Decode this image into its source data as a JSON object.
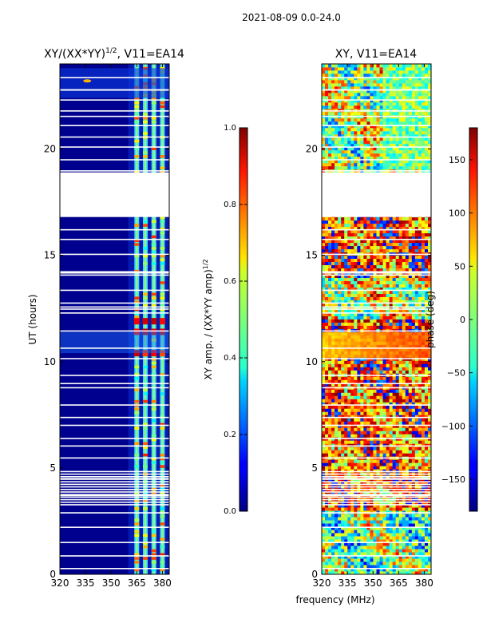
{
  "figure": {
    "suptitle": "2021-08-09 0.0-24.0",
    "shared_xlabel": "frequency (MHz)"
  },
  "chart_data": [
    {
      "type": "heatmap",
      "title": "XY/(XX*YY)",
      "title_exponent": "1/2",
      "title_suffix": ", V11=EA14",
      "ylabel": "UT (hours)",
      "xlabel": "frequency (MHz)",
      "xlim": [
        320,
        384
      ],
      "ylim": [
        0,
        24
      ],
      "xticks": [
        320,
        335,
        350,
        365,
        380
      ],
      "yticks": [
        0,
        5,
        10,
        15,
        20
      ],
      "band_columns_mhz": [
        365,
        370,
        375,
        380
      ],
      "missing_data_ut": [
        16.8,
        18.9
      ],
      "colorbar": {
        "label": "XY amp. / (XX*YY amp)",
        "label_exponent": "1/2",
        "range": [
          0.0,
          1.0
        ],
        "ticks": [
          "0.0",
          "0.2",
          "0.4",
          "0.6",
          "0.8",
          "1.0"
        ],
        "colormap": "jet"
      }
    },
    {
      "type": "heatmap",
      "title": "XY, V11=EA14",
      "ylabel": "",
      "xlabel": "frequency (MHz)",
      "xlim": [
        320,
        384
      ],
      "ylim": [
        0,
        24
      ],
      "xticks": [
        320,
        335,
        350,
        365,
        380
      ],
      "yticks": [
        0,
        5,
        10,
        15,
        20
      ],
      "missing_data_ut": [
        16.8,
        18.9
      ],
      "colorbar": {
        "label": "phase (deg)",
        "range": [
          -180,
          180
        ],
        "ticks": [
          "150",
          "100",
          "50",
          "0",
          "−50",
          "−100",
          "−150"
        ],
        "tick_values": [
          150,
          100,
          50,
          0,
          -50,
          -100,
          -150
        ],
        "colormap": "jet"
      }
    }
  ]
}
